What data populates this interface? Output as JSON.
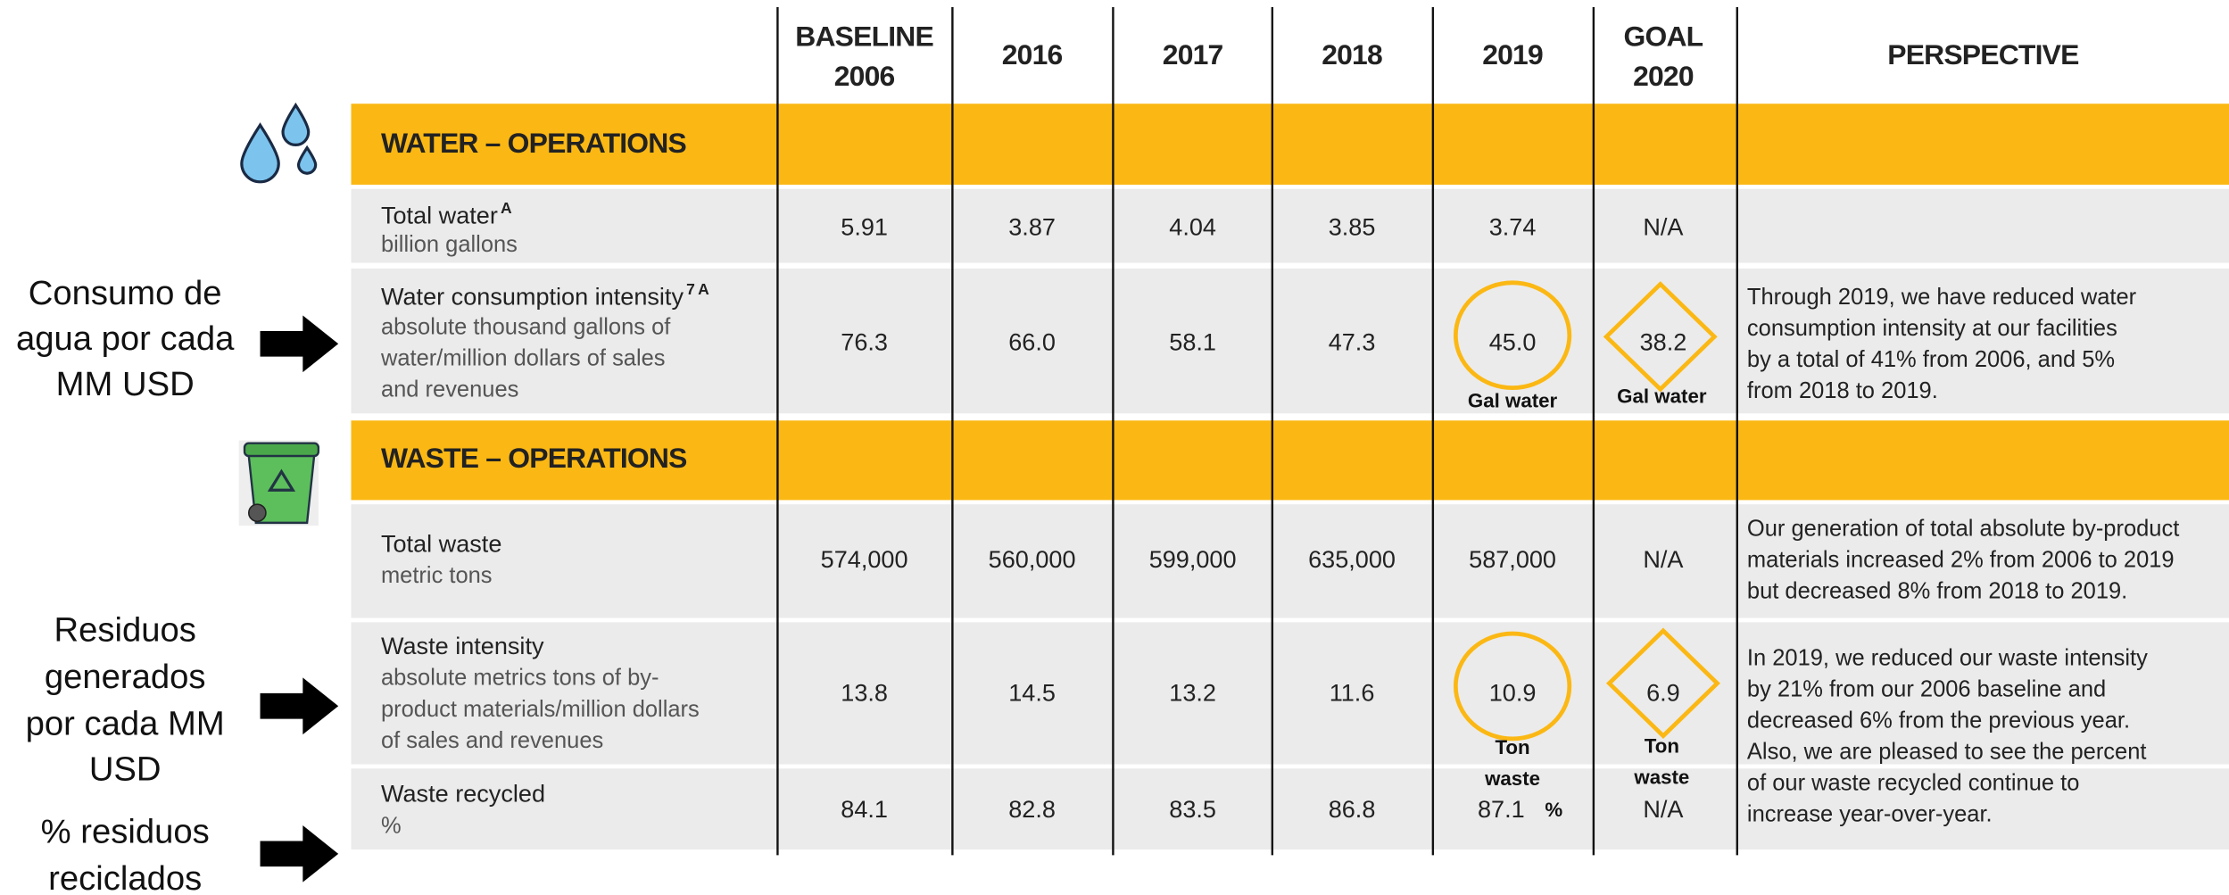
{
  "header": {
    "columns": [
      [
        "BASELINE",
        "2006"
      ],
      [
        "2016"
      ],
      [
        "2017"
      ],
      [
        "2018"
      ],
      [
        "2019"
      ],
      [
        "GOAL",
        "2020"
      ],
      [
        "PERSPECTIVE"
      ]
    ]
  },
  "sections": [
    {
      "title": "WATER – OPERATIONS",
      "rows": [
        {
          "label": "Total water",
          "sup": [
            "A"
          ],
          "unit": [
            "billion gallons"
          ],
          "values": [
            "5.91",
            "3.87",
            "4.04",
            "3.85",
            "3.74",
            "N/A"
          ]
        },
        {
          "label": "Water consumption intensity",
          "sup": [
            "7",
            "A"
          ],
          "unit": [
            "absolute thousand gallons of",
            "water/million dollars of sales",
            "and revenues"
          ],
          "values": [
            "76.3",
            "66.0",
            "58.1",
            "47.3",
            "45.0",
            "38.2"
          ],
          "highlight": {
            "circle": [
              "Gal water"
            ],
            "diamond": [
              "Gal water"
            ]
          },
          "perspective": [
            "Through 2019, we have reduced water",
            "consumption intensity at our facilities",
            "by a total of 41% from 2006, and 5%",
            "from 2018 to 2019."
          ]
        }
      ]
    },
    {
      "title": "WASTE – OPERATIONS",
      "rows": [
        {
          "label": "Total waste",
          "unit": [
            "metric tons"
          ],
          "values": [
            "574,000",
            "560,000",
            "599,000",
            "635,000",
            "587,000",
            "N/A"
          ],
          "perspective": [
            "Our generation of total absolute by-product",
            "materials increased 2% from 2006 to 2019",
            "but decreased 8% from 2018 to 2019."
          ]
        },
        {
          "label": "Waste intensity",
          "unit": [
            "absolute metrics tons of by-",
            "product materials/million dollars",
            "of sales and revenues"
          ],
          "values": [
            "13.8",
            "14.5",
            "13.2",
            "11.6",
            "10.9",
            "6.9"
          ],
          "highlight": {
            "circle": [
              "Ton",
              "waste"
            ],
            "diamond": [
              "Ton",
              "waste"
            ]
          },
          "perspective": [
            "In 2019, we reduced our waste intensity",
            "by 21% from our 2006 baseline and",
            "decreased 6% from the previous year.",
            "Also, we are pleased to see the percent",
            "of our waste recycled continue to",
            "increase year-over-year."
          ]
        },
        {
          "label": "Waste recycled",
          "unit": [
            "%"
          ],
          "values": [
            "84.1",
            "82.8",
            "83.5",
            "86.8",
            "87.1",
            "N/A"
          ],
          "extra": "%"
        }
      ]
    }
  ],
  "annotations": [
    [
      "Consumo de",
      "agua por cada",
      "MM USD"
    ],
    [
      "Residuos",
      "generados",
      "por cada MM",
      "USD"
    ],
    [
      "% residuos",
      "reciclados"
    ]
  ]
}
